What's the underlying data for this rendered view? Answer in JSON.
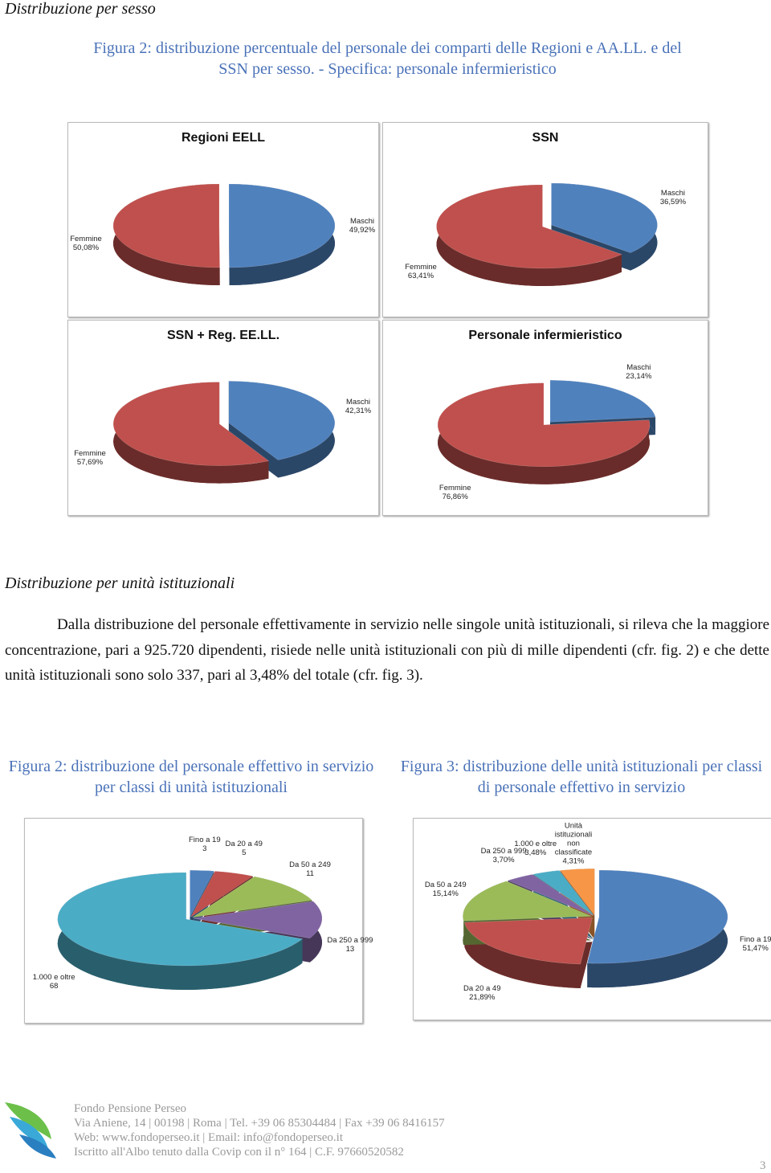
{
  "header": {
    "section_title": "Distribuzione per sesso",
    "figure_caption": "Figura 2: distribuzione percentuale del personale dei comparti delle Regioni e AA.LL. e del SSN per sesso. - Specifica: personale infermieristico"
  },
  "chart_data": [
    {
      "type": "pie",
      "title": "Regioni EELL",
      "categories": [
        "Maschi",
        "Femmine"
      ],
      "values": [
        49.92,
        50.08
      ],
      "value_labels": [
        "49,92%",
        "50,08%"
      ],
      "colors": [
        "#4f81bd",
        "#c0504d"
      ]
    },
    {
      "type": "pie",
      "title": "SSN",
      "categories": [
        "Maschi",
        "Femmine"
      ],
      "values": [
        36.59,
        63.41
      ],
      "value_labels": [
        "36,59%",
        "63,41%"
      ],
      "colors": [
        "#4f81bd",
        "#c0504d"
      ]
    },
    {
      "type": "pie",
      "title": "SSN + Reg. EE.LL.",
      "categories": [
        "Maschi",
        "Femmine"
      ],
      "values": [
        42.31,
        57.69
      ],
      "value_labels": [
        "42,31%",
        "57,69%"
      ],
      "colors": [
        "#4f81bd",
        "#c0504d"
      ]
    },
    {
      "type": "pie",
      "title": "Personale infermieristico",
      "categories": [
        "Maschi",
        "Femmine"
      ],
      "values": [
        23.14,
        76.86
      ],
      "value_labels": [
        "23,14%",
        "76,86%"
      ],
      "colors": [
        "#4f81bd",
        "#c0504d"
      ]
    },
    {
      "type": "pie",
      "categories": [
        "Fino a 19",
        "Da 20 a 49",
        "Da 50 a 249",
        "Da 250 a 999",
        "1.000 e oltre"
      ],
      "values": [
        3,
        5,
        11,
        13,
        68
      ],
      "colors": [
        "#4f81bd",
        "#c0504d",
        "#9bbb59",
        "#8064a2",
        "#4bacc6"
      ]
    },
    {
      "type": "pie",
      "categories": [
        "Fino a 19",
        "Da 20 a 49",
        "Da 50 a 249",
        "Da 250 a 999",
        "1.000 e oltre",
        "Unità istituzionali non classificate"
      ],
      "values": [
        51.47,
        21.89,
        15.14,
        3.7,
        3.48,
        4.31
      ],
      "value_labels": [
        "51,47%",
        "21,89%",
        "15,14%",
        "3,70%",
        "3,48%",
        "4,31%"
      ],
      "colors": [
        "#4f81bd",
        "#c0504d",
        "#9bbb59",
        "#8064a2",
        "#4bacc6",
        "#f79646"
      ]
    }
  ],
  "section2": {
    "title": "Distribuzione per unità istituzionali",
    "paragraph": "Dalla distribuzione del personale effettivamente in servizio nelle singole unità istituzionali, si rileva che la maggiore concentrazione, pari a 925.720 dipendenti, risiede nelle unità istituzionali con più di mille dipendenti (cfr. fig. 2) e che dette unità istituzionali sono solo 337, pari al 3,48% del totale (cfr. fig. 3).",
    "figure2_caption": "Figura 2: distribuzione del personale effettivo in servizio per classi di unità istituzionali",
    "figure3_caption": "Figura 3: distribuzione delle unità istituzionali per classi di personale effettivo in servizio"
  },
  "footer": {
    "lines": [
      "Fondo Pensione Perseo",
      "Via Aniene, 14 | 00198 | Roma | Tel. +39 06 85304484 | Fax +39 06 8416157",
      "Web: www.fondoperseo.it | Email: info@fondoperseo.it",
      "Iscritto all'Albo tenuto dalla Covip con il n° 164 | C.F. 97660520582"
    ],
    "page_number": "3"
  }
}
